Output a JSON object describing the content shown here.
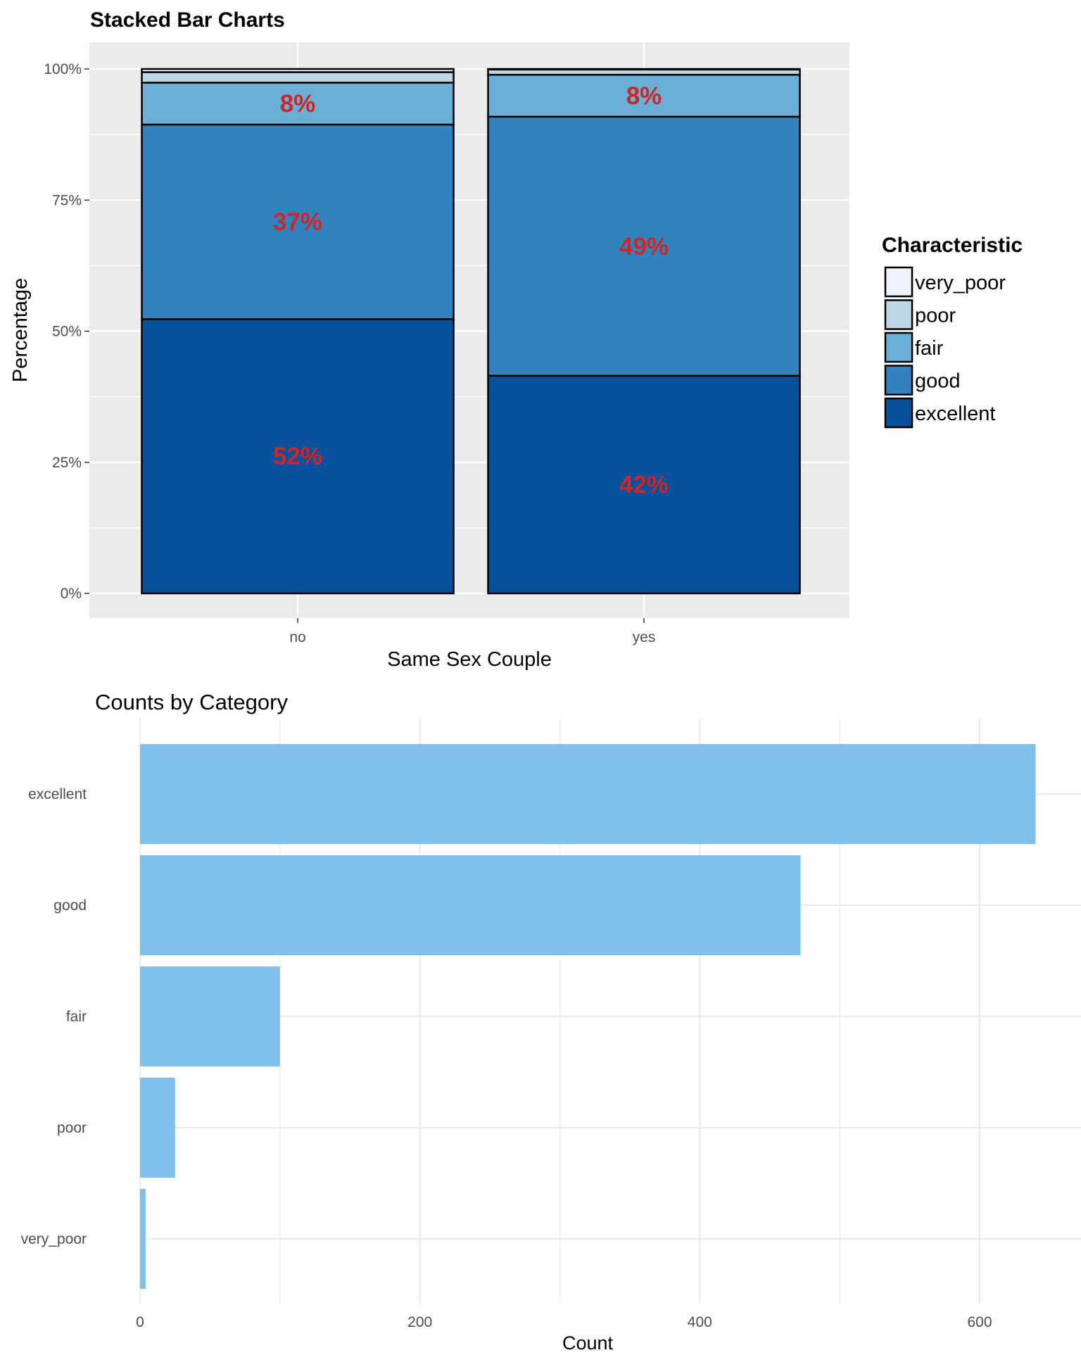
{
  "charts": {
    "stacked": {
      "title": "Stacked Bar Charts",
      "xlabel": "Same Sex Couple",
      "ylabel": "Percentage",
      "legend_title": "Characteristic"
    },
    "counts": {
      "title": "Counts by Category",
      "xlabel": "Count"
    }
  },
  "colors": {
    "panel_bg": "#EBEBEB",
    "grid": "#FFFFFF",
    "bar_outline": "#000000",
    "label_red": "#CD2626",
    "counts_bar": "#7FC0EC",
    "counts_grid": "#EBEBEB",
    "axis_text": "#4D4D4D",
    "stack": {
      "very_poor": "#EFF3FF",
      "poor": "#BDD7E7",
      "fair": "#6BAED6",
      "good": "#3182BD",
      "excellent": "#08519C"
    }
  },
  "chart_data": [
    {
      "type": "bar",
      "stacked": true,
      "title": "Stacked Bar Charts",
      "xlabel": "Same Sex Couple",
      "ylabel": "Percentage",
      "categories": [
        "no",
        "yes"
      ],
      "ylim": [
        0,
        1
      ],
      "yticks": [
        0,
        0.25,
        0.5,
        0.75,
        1.0
      ],
      "ytick_labels": [
        "0%",
        "25%",
        "50%",
        "75%",
        "100%"
      ],
      "legend": {
        "title": "Characteristic",
        "placement": "right",
        "entries": [
          "very_poor",
          "poor",
          "fair",
          "good",
          "excellent"
        ]
      },
      "series": [
        {
          "name": "excellent",
          "values": [
            0.523,
            0.415
          ]
        },
        {
          "name": "good",
          "values": [
            0.371,
            0.494
          ]
        },
        {
          "name": "fair",
          "values": [
            0.08,
            0.08
          ]
        },
        {
          "name": "poor",
          "values": [
            0.02,
            0.01
          ]
        },
        {
          "name": "very_poor",
          "values": [
            0.006,
            0.001
          ]
        }
      ],
      "data_labels": [
        {
          "category": "no",
          "series": "excellent",
          "text": "52%"
        },
        {
          "category": "no",
          "series": "good",
          "text": "37%"
        },
        {
          "category": "no",
          "series": "fair",
          "text": "8%"
        },
        {
          "category": "yes",
          "series": "excellent",
          "text": "42%"
        },
        {
          "category": "yes",
          "series": "good",
          "text": "49%"
        },
        {
          "category": "yes",
          "series": "fair",
          "text": "8%"
        }
      ],
      "grid": true
    },
    {
      "type": "bar",
      "orientation": "horizontal",
      "title": "Counts by Category",
      "xlabel": "Count",
      "ylabel": "",
      "categories": [
        "excellent",
        "good",
        "fair",
        "poor",
        "very_poor"
      ],
      "values": [
        640,
        472,
        100,
        25,
        4
      ],
      "xlim": [
        0,
        670
      ],
      "xticks": [
        0,
        200,
        400,
        600
      ],
      "xtick_labels": [
        "0",
        "200",
        "400",
        "600"
      ],
      "grid": true
    }
  ]
}
